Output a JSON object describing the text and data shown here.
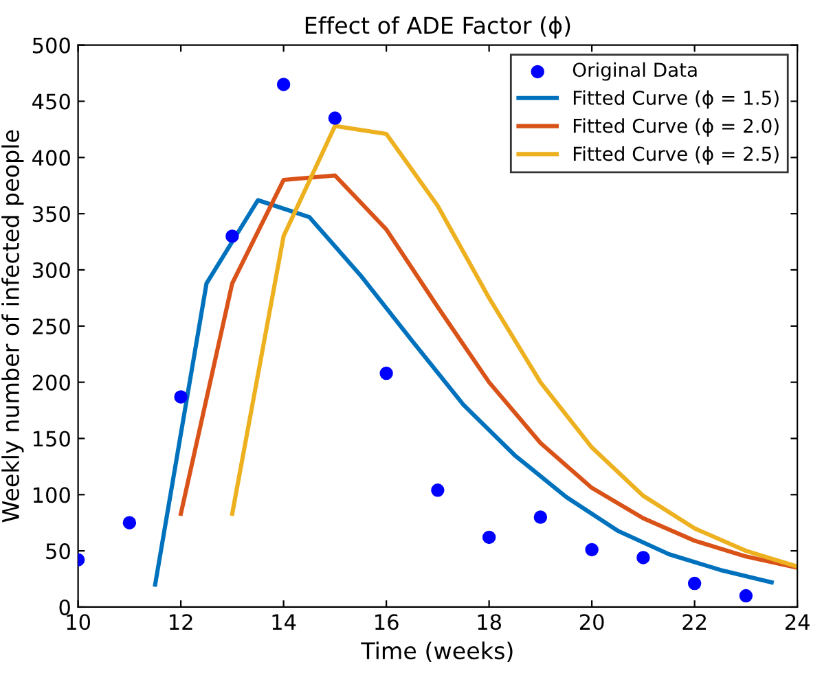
{
  "chart_data": {
    "type": "line",
    "title": "Effect of ADE Factor (ϕ)",
    "xlabel": "Time (weeks)",
    "ylabel": "Weekly number of infected people",
    "series": [
      {
        "name": "Original Data",
        "type": "scatter",
        "marker": "circle",
        "color": "#0000ff",
        "x": [
          10,
          11,
          12,
          13,
          14,
          15,
          16,
          17,
          18,
          19,
          20,
          21,
          22,
          23
        ],
        "values": [
          42,
          75,
          187,
          330,
          465,
          435,
          208,
          104,
          62,
          80,
          51,
          44,
          21,
          10
        ]
      },
      {
        "name": "Fitted Curve (ϕ = 1.5)",
        "color": "#0072bd",
        "x": [
          11.5,
          12.5,
          13.5,
          14.5,
          15.5,
          16.5,
          17.5,
          18.5,
          19.5,
          20.5,
          21.5,
          22.5,
          23.5
        ],
        "values": [
          20,
          288,
          362,
          347,
          295,
          237,
          180,
          135,
          98,
          68,
          47,
          33,
          22
        ]
      },
      {
        "name": "Fitted Curve (ϕ = 2.0)",
        "color": "#d95319",
        "x": [
          12,
          13,
          14,
          15,
          16,
          17,
          18,
          19,
          20,
          21,
          22,
          23,
          24
        ],
        "values": [
          83,
          288,
          380,
          384,
          336,
          267,
          200,
          146,
          106,
          79,
          59,
          45,
          35
        ]
      },
      {
        "name": "Fitted Curve (ϕ = 2.5)",
        "color": "#edb120",
        "x": [
          13,
          14,
          15,
          16,
          17,
          18,
          19,
          20,
          21,
          22,
          23,
          24
        ],
        "values": [
          83,
          330,
          428,
          421,
          357,
          275,
          200,
          142,
          99,
          70,
          50,
          36
        ]
      }
    ],
    "xlim": [
      10,
      24
    ],
    "xticks": [
      10,
      12,
      14,
      16,
      18,
      20,
      22,
      24
    ],
    "ylim": [
      0,
      500
    ],
    "yticks": [
      0,
      50,
      100,
      150,
      200,
      250,
      300,
      350,
      400,
      450,
      500
    ],
    "legend": "top right"
  }
}
